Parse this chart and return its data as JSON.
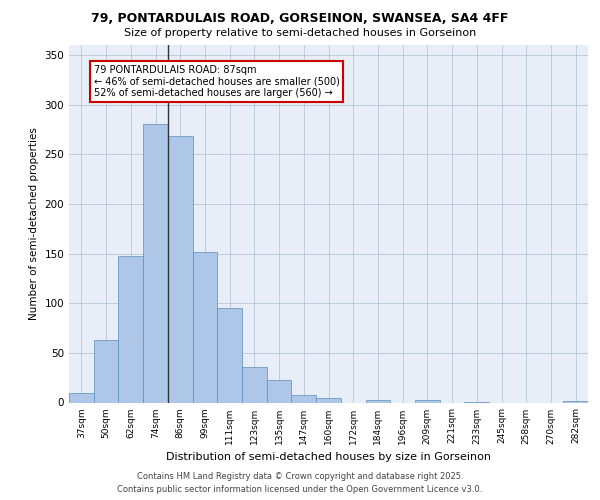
{
  "title_line1": "79, PONTARDULAIS ROAD, GORSEINON, SWANSEA, SA4 4FF",
  "title_line2": "Size of property relative to semi-detached houses in Gorseinon",
  "xlabel": "Distribution of semi-detached houses by size in Gorseinon",
  "ylabel": "Number of semi-detached properties",
  "categories": [
    "37sqm",
    "50sqm",
    "62sqm",
    "74sqm",
    "86sqm",
    "99sqm",
    "111sqm",
    "123sqm",
    "135sqm",
    "147sqm",
    "160sqm",
    "172sqm",
    "184sqm",
    "196sqm",
    "209sqm",
    "221sqm",
    "233sqm",
    "245sqm",
    "258sqm",
    "270sqm",
    "282sqm"
  ],
  "values": [
    10,
    63,
    148,
    280,
    268,
    152,
    95,
    36,
    23,
    8,
    5,
    0,
    3,
    0,
    3,
    0,
    1,
    0,
    0,
    0,
    2
  ],
  "bar_color": "#aec6e8",
  "bar_edge_color": "#5a8fc0",
  "property_size": "87sqm",
  "property_label": "79 PONTARDULAIS ROAD: 87sqm",
  "pct_smaller": 46,
  "n_smaller": 500,
  "pct_larger": 52,
  "n_larger": 560,
  "annotation_box_color": "#ffffff",
  "annotation_box_edge": "#cc0000",
  "vline_color": "#333333",
  "background_color": "#e8eef8",
  "ylim": [
    0,
    360
  ],
  "yticks": [
    0,
    50,
    100,
    150,
    200,
    250,
    300,
    350
  ],
  "footer_line1": "Contains HM Land Registry data © Crown copyright and database right 2025.",
  "footer_line2": "Contains public sector information licensed under the Open Government Licence v3.0."
}
